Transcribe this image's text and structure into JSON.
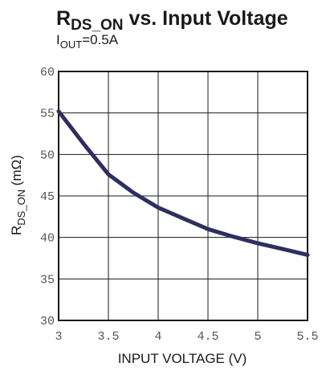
{
  "chart_data": {
    "type": "line",
    "title": {
      "main": "R",
      "main_sub": "DS_ON",
      "rest": " vs. Input Voltage"
    },
    "subtitle": {
      "main": "I",
      "main_sub": "OUT",
      "rest": "=0.5A"
    },
    "xlabel": "INPUT VOLTAGE (V)",
    "ylabel": {
      "main": "R",
      "main_sub": "DS_ON",
      "rest": " (mΩ)"
    },
    "xlim": [
      3,
      5.5
    ],
    "ylim": [
      30,
      60
    ],
    "x_ticks": [
      "3",
      "3.5",
      "4",
      "4.5",
      "5",
      "5.5"
    ],
    "y_ticks": [
      "60",
      "55",
      "50",
      "45",
      "40",
      "35",
      "30"
    ],
    "grid": true,
    "series": [
      {
        "color": "#2e2f5f",
        "x": [
          3.0,
          3.25,
          3.5,
          3.75,
          4.0,
          4.25,
          4.5,
          4.75,
          5.0,
          5.25,
          5.5
        ],
        "y": [
          55.2,
          51.3,
          47.6,
          45.4,
          43.6,
          42.3,
          41.0,
          40.1,
          39.3,
          38.6,
          37.9
        ]
      }
    ]
  }
}
